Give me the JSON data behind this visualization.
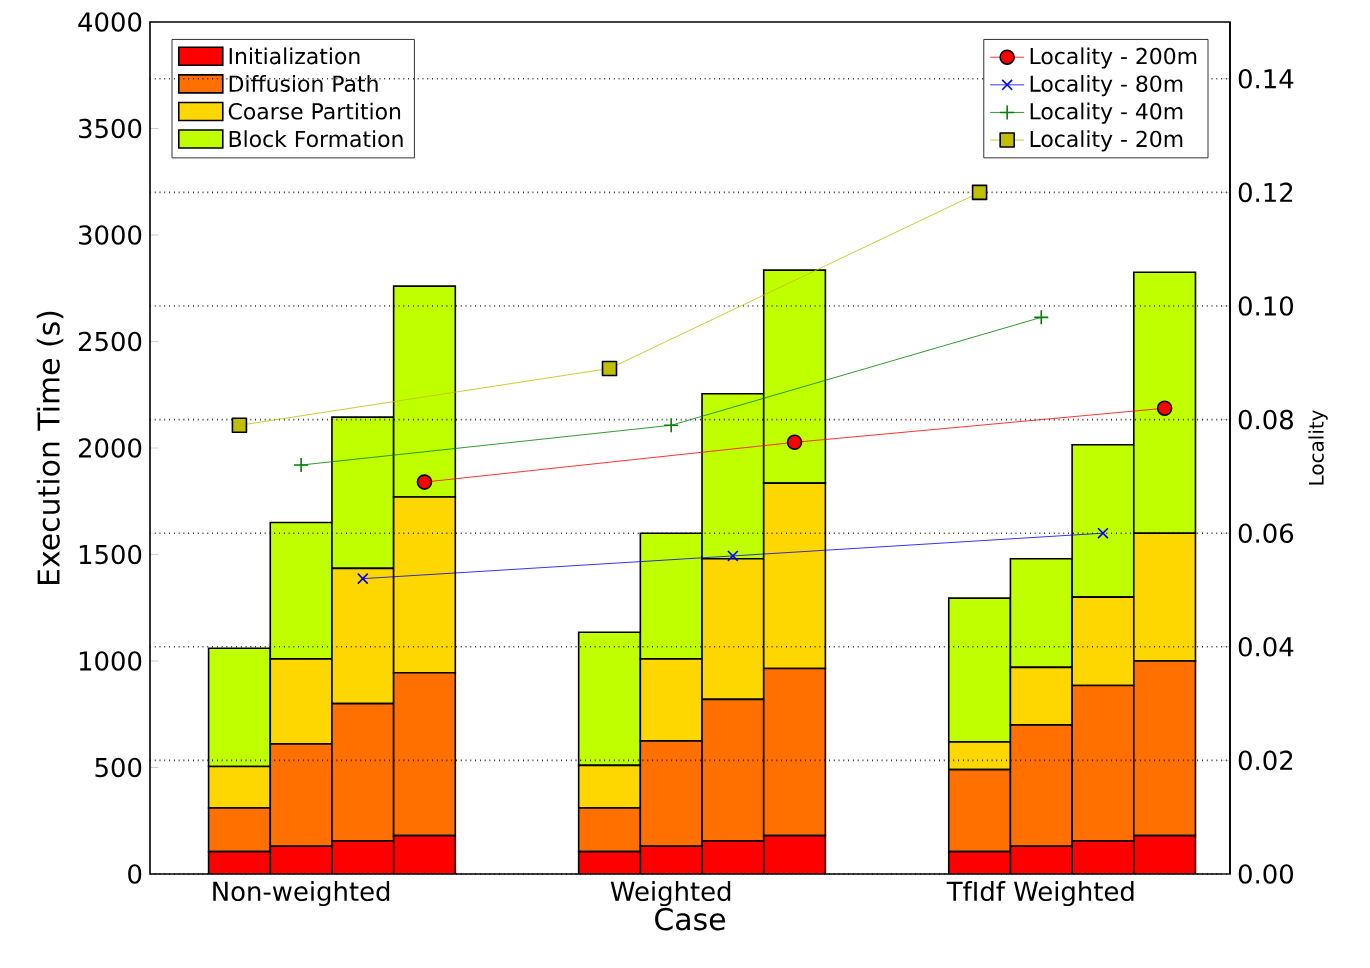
{
  "chart_data": {
    "type": "bar",
    "stacked": true,
    "xlabel": "Case",
    "ylabel": "Execution Time (s)",
    "y2label": "Locality",
    "categories": [
      null,
      "Non-weighted",
      null,
      null,
      null,
      null,
      null,
      "Weighted",
      null,
      null,
      null,
      null,
      null,
      "TfIdf Weighted",
      null,
      null
    ],
    "ylim": [
      0,
      4000
    ],
    "yticks": [
      0,
      500,
      1000,
      1500,
      2000,
      2500,
      3000,
      3500,
      4000
    ],
    "y2lim": [
      0,
      0.15
    ],
    "y2ticks": [
      {
        "value": 0,
        "label": "0.00"
      },
      {
        "value": 0.02,
        "label": "0.02"
      },
      {
        "value": 0.04,
        "label": "0.04"
      },
      {
        "value": 0.06,
        "label": "0.06"
      },
      {
        "value": 0.08,
        "label": "0.08"
      },
      {
        "value": 0.1,
        "label": "0.10"
      },
      {
        "value": 0.12,
        "label": "0.12"
      },
      {
        "value": 0.14,
        "label": "0.14"
      }
    ],
    "grid": "y2",
    "legend": "top left",
    "series": [
      {
        "name": "Initialization",
        "color": "#ff0000",
        "values": [
          105,
          130,
          155,
          180,
          null,
          null,
          105,
          130,
          155,
          180,
          null,
          null,
          105,
          130,
          155,
          180
        ]
      },
      {
        "name": "Diffusion Path",
        "type": "bar",
        "color": "#ff7000",
        "values": [
          205,
          480,
          645,
          765,
          null,
          null,
          205,
          495,
          665,
          785,
          null,
          null,
          385,
          570,
          730,
          820
        ]
      },
      {
        "name": "Coarse Partition",
        "type": "bar",
        "color": "#ffd700",
        "values": [
          195,
          400,
          635,
          825,
          null,
          null,
          200,
          385,
          660,
          870,
          null,
          null,
          130,
          270,
          415,
          600
        ]
      },
      {
        "name": "Block Formation",
        "type": "bar",
        "color": "#c0ff00",
        "values": [
          555,
          640,
          710,
          990,
          null,
          null,
          625,
          590,
          775,
          1000,
          null,
          null,
          675,
          510,
          715,
          1225
        ]
      },
      {
        "name": "Locality - 200m",
        "type": "line",
        "axis": "y2",
        "marker": "circle",
        "color": "#ff0000",
        "values": [
          null,
          null,
          null,
          0.069,
          null,
          null,
          null,
          null,
          null,
          0.076,
          null,
          null,
          null,
          null,
          null,
          0.082
        ]
      },
      {
        "name": "Locality - 80m",
        "type": "line",
        "axis": "y2",
        "marker": "cross",
        "color": "#0000ff",
        "values": [
          null,
          null,
          0.052,
          null,
          null,
          null,
          null,
          null,
          0.056,
          null,
          null,
          null,
          null,
          null,
          0.06,
          null
        ]
      },
      {
        "name": "Locality - 40m",
        "type": "line",
        "axis": "y2",
        "marker": "plus",
        "color": "#008000",
        "values": [
          null,
          0.072,
          null,
          null,
          null,
          null,
          null,
          0.079,
          null,
          null,
          null,
          null,
          null,
          0.098,
          null,
          null
        ]
      },
      {
        "name": "Locality - 20m",
        "type": "line",
        "axis": "y2",
        "marker": "square",
        "color": "#bfbf00",
        "values": [
          0.079,
          null,
          null,
          null,
          null,
          null,
          0.089,
          null,
          null,
          null,
          null,
          null,
          0.12,
          null,
          null,
          null
        ]
      }
    ]
  }
}
